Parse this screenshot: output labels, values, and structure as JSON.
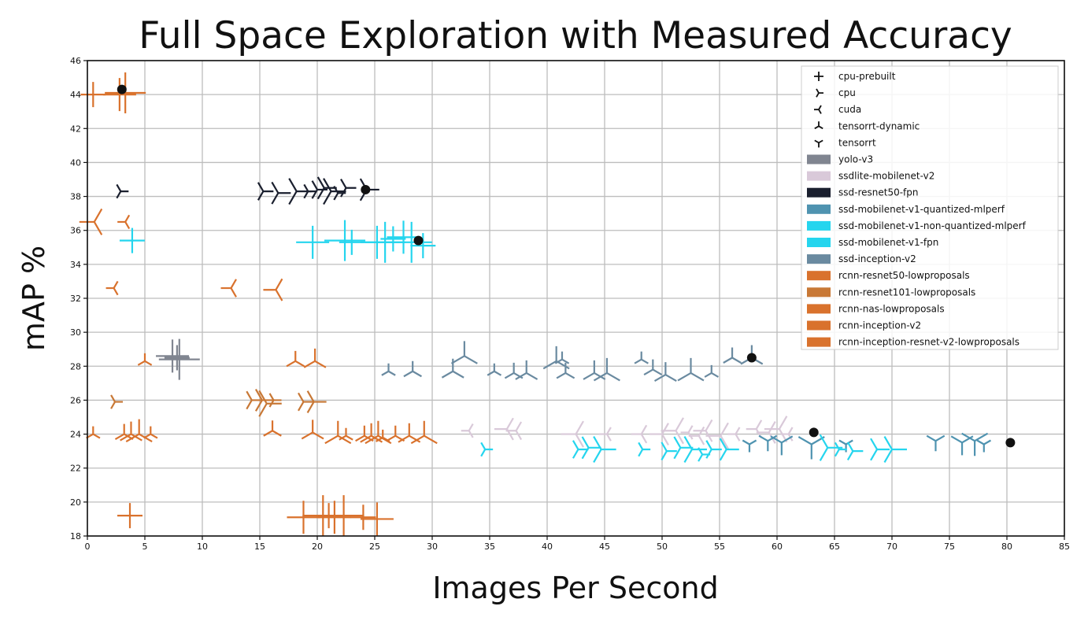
{
  "chart_data": {
    "type": "scatter",
    "title": "Full Space Exploration with Measured Accuracy",
    "xlabel": "Images Per Second",
    "ylabel": "mAP %",
    "xlim": [
      0,
      85
    ],
    "ylim": [
      18,
      46
    ],
    "xticks": [
      0,
      5,
      10,
      15,
      20,
      25,
      30,
      35,
      40,
      45,
      50,
      55,
      60,
      65,
      70,
      75,
      80,
      85
    ],
    "yticks": [
      18,
      20,
      22,
      24,
      26,
      28,
      30,
      32,
      34,
      36,
      38,
      40,
      42,
      44,
      46
    ],
    "grid": true,
    "legend_position": "top-right",
    "marker_legend": [
      {
        "label": "cpu-prebuilt",
        "marker": "plus"
      },
      {
        "label": "cpu",
        "marker": "tri-right"
      },
      {
        "label": "cuda",
        "marker": "tri-left"
      },
      {
        "label": "tensorrt-dynamic",
        "marker": "tri-up"
      },
      {
        "label": "tensorrt",
        "marker": "tri-down"
      }
    ],
    "series": [
      {
        "name": "yolo-v3",
        "color": "#808590",
        "marker": "plus",
        "points": [
          [
            7.8,
            28.5
          ],
          [
            7.4,
            28.6
          ],
          [
            8.0,
            28.4
          ]
        ]
      },
      {
        "name": "ssdlite-mobilenet-v2",
        "color": "#d9c9d9",
        "marker": "tri-left",
        "points": [
          [
            33.2,
            24.2
          ],
          [
            37.3,
            24.2
          ],
          [
            36.5,
            24.3
          ],
          [
            42.5,
            24.0
          ],
          [
            45.2,
            24.0
          ],
          [
            48.2,
            24.0
          ],
          [
            50.0,
            24.0
          ],
          [
            51.2,
            24.2
          ],
          [
            52.3,
            24.1
          ],
          [
            53.2,
            23.9
          ],
          [
            53.8,
            24.2
          ],
          [
            55.1,
            23.9
          ],
          [
            56.4,
            24.0
          ],
          [
            58.2,
            24.3
          ],
          [
            59.3,
            24.1
          ],
          [
            60.2,
            24.3
          ],
          [
            61.0,
            24.0
          ]
        ]
      },
      {
        "name": "ssd-resnet50-fpn",
        "color": "#1a1f2e",
        "marker": "tri-right",
        "points": [
          [
            2.9,
            38.3
          ],
          [
            15.3,
            38.3
          ],
          [
            16.6,
            38.2
          ],
          [
            18.2,
            38.3
          ],
          [
            19.2,
            38.3
          ],
          [
            20.0,
            38.4
          ],
          [
            20.6,
            38.5
          ],
          [
            21.2,
            38.3
          ],
          [
            21.8,
            38.2
          ],
          [
            22.5,
            38.5
          ],
          [
            24.3,
            38.4
          ]
        ]
      },
      {
        "name": "ssd-mobilenet-v1-quantized-mlperf",
        "color": "#4f93b0",
        "marker": "tri-down",
        "points": [
          [
            57.6,
            23.4
          ],
          [
            59.2,
            23.6
          ],
          [
            60.4,
            23.5
          ],
          [
            63.0,
            23.4
          ],
          [
            66.0,
            23.4
          ],
          [
            73.8,
            23.6
          ],
          [
            76.1,
            23.5
          ],
          [
            77.2,
            23.6
          ],
          [
            78.0,
            23.4
          ]
        ]
      },
      {
        "name": "ssd-mobilenet-v1-non-quantized-mlperf",
        "color": "#25d5ee",
        "marker": "tri-right",
        "points": [
          [
            34.6,
            23.1
          ],
          [
            42.7,
            23.1
          ],
          [
            43.6,
            23.2
          ],
          [
            44.7,
            23.1
          ],
          [
            48.3,
            23.1
          ],
          [
            50.4,
            23.0
          ],
          [
            51.6,
            23.2
          ],
          [
            52.6,
            23.1
          ],
          [
            53.5,
            22.8
          ],
          [
            54.3,
            23.1
          ],
          [
            55.6,
            23.1
          ],
          [
            64.4,
            23.2
          ],
          [
            65.4,
            23.1
          ],
          [
            66.6,
            23.0
          ],
          [
            68.7,
            23.1
          ],
          [
            70.0,
            23.1
          ]
        ]
      },
      {
        "name": "ssd-mobilenet-v1-fpn",
        "color": "#25d5ee",
        "marker": "plus",
        "points": [
          [
            3.9,
            35.4
          ],
          [
            19.6,
            35.3
          ],
          [
            22.4,
            35.4
          ],
          [
            23.0,
            35.3
          ],
          [
            25.2,
            35.3
          ],
          [
            25.9,
            35.3
          ],
          [
            26.6,
            35.5
          ],
          [
            27.5,
            35.6
          ],
          [
            28.2,
            35.3
          ],
          [
            29.2,
            35.1
          ]
        ]
      },
      {
        "name": "ssd-inception-v2",
        "color": "#6a8aa0",
        "marker": "tri-up",
        "points": [
          [
            26.2,
            27.7
          ],
          [
            28.3,
            27.7
          ],
          [
            31.8,
            27.7
          ],
          [
            32.8,
            28.6
          ],
          [
            35.4,
            27.7
          ],
          [
            37.1,
            27.6
          ],
          [
            38.2,
            27.6
          ],
          [
            40.8,
            28.3
          ],
          [
            41.3,
            28.4
          ],
          [
            41.6,
            27.6
          ],
          [
            44.1,
            27.6
          ],
          [
            45.2,
            27.6
          ],
          [
            48.2,
            28.4
          ],
          [
            49.2,
            27.8
          ],
          [
            50.3,
            27.5
          ],
          [
            52.5,
            27.6
          ],
          [
            54.3,
            27.6
          ],
          [
            56.1,
            28.5
          ],
          [
            57.8,
            28.5
          ]
        ]
      },
      {
        "name": "rcnn-resnet50-lowproposals",
        "color": "#d9722d",
        "marker": "plus",
        "points": [
          [
            3.7,
            19.2
          ],
          [
            18.8,
            19.1
          ],
          [
            20.5,
            19.2
          ],
          [
            21.0,
            19.2
          ],
          [
            21.5,
            19.1
          ],
          [
            22.3,
            19.2
          ],
          [
            24.0,
            19.1
          ],
          [
            25.2,
            19.0
          ]
        ]
      },
      {
        "name": "rcnn-resnet101-lowproposals",
        "color": "#c87836",
        "marker": "tri-right",
        "points": [
          [
            2.4,
            25.9
          ],
          [
            14.3,
            26.0
          ],
          [
            15.2,
            26.0
          ],
          [
            15.6,
            25.8
          ],
          [
            16.2,
            26.0
          ],
          [
            18.8,
            25.9
          ],
          [
            19.7,
            25.9
          ]
        ]
      },
      {
        "name": "rcnn-nas-lowproposals",
        "color": "#d9722d",
        "marker": "tri-left",
        "points": [
          [
            2.3,
            32.6
          ],
          [
            12.5,
            32.6
          ],
          [
            16.4,
            32.5
          ],
          [
            0.6,
            36.5
          ],
          [
            3.3,
            36.5
          ]
        ]
      },
      {
        "name": "rcnn-inception-v2",
        "color": "#d9722d",
        "marker": "tri-up",
        "points": [
          [
            0.5,
            24.0
          ],
          [
            3.2,
            24.0
          ],
          [
            3.8,
            24.0
          ],
          [
            4.5,
            24.0
          ],
          [
            5.5,
            24.0
          ],
          [
            16.1,
            24.2
          ],
          [
            19.6,
            24.1
          ],
          [
            21.8,
            23.9
          ],
          [
            22.5,
            23.9
          ],
          [
            24.1,
            23.9
          ],
          [
            24.7,
            23.9
          ],
          [
            25.3,
            23.9
          ],
          [
            25.7,
            23.8
          ],
          [
            26.8,
            23.9
          ],
          [
            28.0,
            23.9
          ],
          [
            29.3,
            23.9
          ],
          [
            5.0,
            28.3
          ],
          [
            18.1,
            28.3
          ],
          [
            19.8,
            28.3
          ]
        ]
      },
      {
        "name": "rcnn-inception-resnet-v2-lowproposals",
        "color": "#d9722d",
        "marker": "plus",
        "points": [
          [
            0.5,
            44.0
          ],
          [
            2.8,
            44.0
          ],
          [
            3.3,
            44.1
          ]
        ]
      }
    ],
    "highlighted_points": [
      [
        3.0,
        44.3
      ],
      [
        24.2,
        38.4
      ],
      [
        28.8,
        35.4
      ],
      [
        57.8,
        28.5
      ],
      [
        63.2,
        24.1
      ],
      [
        80.3,
        23.5
      ]
    ]
  }
}
